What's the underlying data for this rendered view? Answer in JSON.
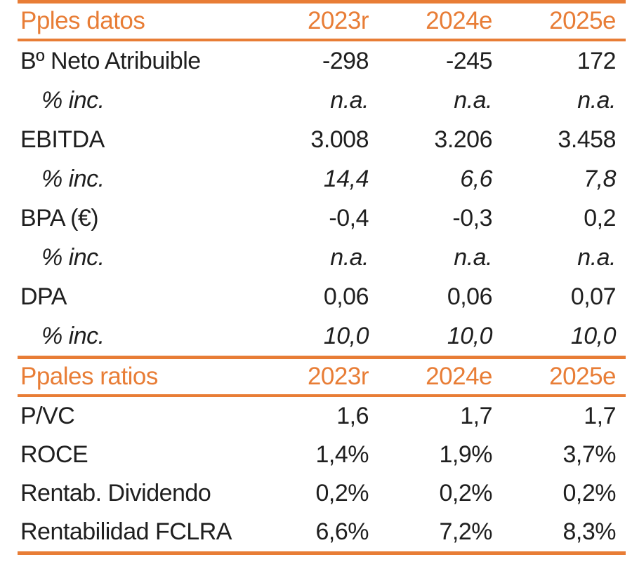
{
  "accent_color": "#e87d36",
  "text_color": "#1f1f1f",
  "table": {
    "sections": [
      {
        "header": {
          "label": "Pples datos",
          "columns": [
            "2023r",
            "2024e",
            "2025e"
          ]
        },
        "rows": [
          {
            "label": "Bº Neto Atribuible",
            "values": [
              "-298",
              "-245",
              "172"
            ]
          },
          {
            "label": "% inc.",
            "values": [
              "n.a.",
              "n.a.",
              "n.a."
            ],
            "italic": true
          },
          {
            "label": "EBITDA",
            "values": [
              "3.008",
              "3.206",
              "3.458"
            ]
          },
          {
            "label": "% inc.",
            "values": [
              "14,4",
              "6,6",
              "7,8"
            ],
            "italic": true
          },
          {
            "label": "BPA (€)",
            "values": [
              "-0,4",
              "-0,3",
              "0,2"
            ]
          },
          {
            "label": "% inc.",
            "values": [
              "n.a.",
              "n.a.",
              "n.a."
            ],
            "italic": true
          },
          {
            "label": "DPA",
            "values": [
              "0,06",
              "0,06",
              "0,07"
            ]
          },
          {
            "label": "% inc.",
            "values": [
              "10,0",
              "10,0",
              "10,0"
            ],
            "italic": true
          }
        ]
      },
      {
        "header": {
          "label": "Ppales ratios",
          "columns": [
            "2023r",
            "2024e",
            "2025e"
          ]
        },
        "rows": [
          {
            "label": "P/VC",
            "values": [
              "1,6",
              "1,7",
              "1,7"
            ]
          },
          {
            "label": "ROCE",
            "values": [
              "1,4%",
              "1,9%",
              "3,7%"
            ]
          },
          {
            "label": "Rentab. Dividendo",
            "values": [
              "0,2%",
              "0,2%",
              "0,2%"
            ]
          },
          {
            "label": "Rentabilidad FCLRA",
            "values": [
              "6,6%",
              "7,2%",
              "8,3%"
            ]
          }
        ]
      }
    ]
  }
}
